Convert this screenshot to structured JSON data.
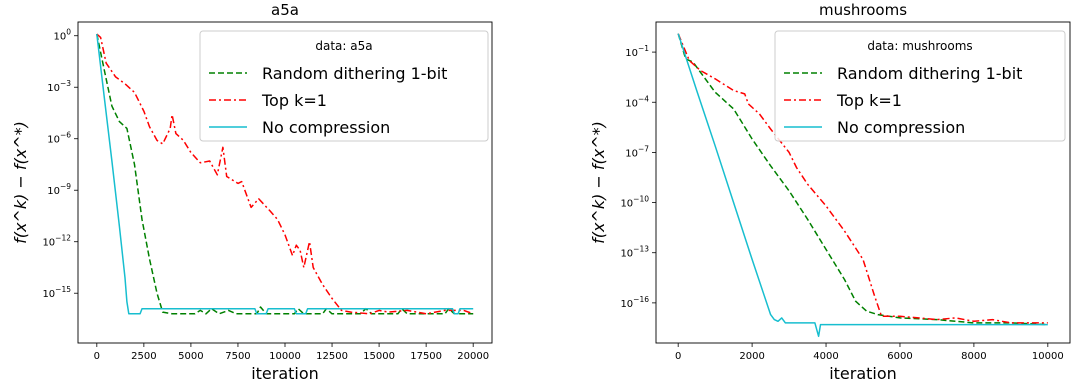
{
  "chart_data": [
    {
      "type": "line",
      "title": "a5a",
      "xlabel": "iteration",
      "ylabel": "f(x^k) − f(x^*)",
      "xlim": [
        -1000,
        21000
      ],
      "xticks": [
        0,
        2500,
        5000,
        7500,
        10000,
        12500,
        15000,
        17500,
        20000
      ],
      "xtick_labels": [
        "0",
        "2500",
        "5000",
        "7500",
        "10000",
        "12500",
        "15000",
        "17500",
        "20000"
      ],
      "yscale": "log",
      "ylim_exp": [
        -17.9,
        0.8
      ],
      "yticks_exp": [
        0,
        -3,
        -6,
        -9,
        -12,
        -15
      ],
      "ytick_labels": [
        {
          "base": "10",
          "exp": "0"
        },
        {
          "base": "10",
          "exp": "−3"
        },
        {
          "base": "10",
          "exp": "−6"
        },
        {
          "base": "10",
          "exp": "−9"
        },
        {
          "base": "10",
          "exp": "−12"
        },
        {
          "base": "10",
          "exp": "−15"
        }
      ],
      "legend": {
        "title": "data: a5a",
        "placement": "top-right"
      },
      "series": [
        {
          "name": "Random dithering 1-bit",
          "color": "#008000",
          "style": "dashed",
          "points": [
            [
              0,
              0.1
            ],
            [
              400,
              -2.0
            ],
            [
              800,
              -4.1
            ],
            [
              1200,
              -5.0
            ],
            [
              1600,
              -5.4
            ],
            [
              2000,
              -7.5
            ],
            [
              2400,
              -10.7
            ],
            [
              2800,
              -13.0
            ],
            [
              3200,
              -15.0
            ],
            [
              3500,
              -16.1
            ],
            [
              4000,
              -16.2
            ],
            [
              4600,
              -16.2
            ],
            [
              5200,
              -16.2
            ],
            [
              5500,
              -16.0
            ],
            [
              5800,
              -16.2
            ],
            [
              6100,
              -15.9
            ],
            [
              6500,
              -16.2
            ],
            [
              7000,
              -16.0
            ],
            [
              7400,
              -16.2
            ],
            [
              8500,
              -16.2
            ],
            [
              8700,
              -15.8
            ],
            [
              9000,
              -16.2
            ],
            [
              10500,
              -16.2
            ],
            [
              10700,
              -15.9
            ],
            [
              11000,
              -16.2
            ],
            [
              12000,
              -16.2
            ],
            [
              12200,
              -15.9
            ],
            [
              12500,
              -16.2
            ],
            [
              14000,
              -16.2
            ],
            [
              14300,
              -15.9
            ],
            [
              14600,
              -16.2
            ],
            [
              16000,
              -16.2
            ],
            [
              16200,
              -15.9
            ],
            [
              16500,
              -16.2
            ],
            [
              18500,
              -16.2
            ],
            [
              18700,
              -15.9
            ],
            [
              19000,
              -16.2
            ],
            [
              20000,
              -16.2
            ]
          ]
        },
        {
          "name": "Top k=1",
          "color": "#ff0000",
          "style": "dashdot",
          "points": [
            [
              0,
              0.1
            ],
            [
              200,
              -0.1
            ],
            [
              500,
              -1.6
            ],
            [
              1000,
              -2.4
            ],
            [
              1500,
              -2.8
            ],
            [
              2000,
              -3.3
            ],
            [
              2500,
              -4.4
            ],
            [
              2800,
              -5.3
            ],
            [
              3200,
              -6.1
            ],
            [
              3500,
              -6.3
            ],
            [
              3900,
              -5.4
            ],
            [
              4000,
              -4.6
            ],
            [
              4200,
              -5.7
            ],
            [
              4600,
              -6.1
            ],
            [
              5000,
              -6.8
            ],
            [
              5500,
              -7.4
            ],
            [
              6000,
              -7.3
            ],
            [
              6400,
              -8.1
            ],
            [
              6700,
              -6.5
            ],
            [
              6900,
              -8.2
            ],
            [
              7500,
              -8.6
            ],
            [
              7700,
              -8.5
            ],
            [
              8200,
              -10.0
            ],
            [
              8600,
              -9.5
            ],
            [
              9200,
              -10.2
            ],
            [
              9600,
              -10.7
            ],
            [
              10000,
              -11.6
            ],
            [
              10400,
              -12.8
            ],
            [
              10600,
              -12.2
            ],
            [
              10800,
              -12.5
            ],
            [
              11000,
              -13.5
            ],
            [
              11300,
              -12.0
            ],
            [
              11500,
              -13.5
            ],
            [
              12000,
              -14.5
            ],
            [
              12500,
              -15.3
            ],
            [
              13000,
              -16.0
            ],
            [
              13500,
              -16.1
            ],
            [
              14500,
              -16.2
            ],
            [
              15000,
              -16.0
            ],
            [
              15500,
              -16.1
            ],
            [
              16500,
              -16.0
            ],
            [
              17500,
              -16.2
            ],
            [
              18500,
              -16.0
            ],
            [
              19500,
              -16.0
            ],
            [
              20000,
              -16.2
            ]
          ]
        },
        {
          "name": "No compression",
          "color": "#17becf",
          "style": "solid",
          "points": [
            [
              0,
              0.1
            ],
            [
              400,
              -3.6
            ],
            [
              800,
              -7.3
            ],
            [
              1200,
              -11.1
            ],
            [
              1500,
              -14.1
            ],
            [
              1600,
              -15.5
            ],
            [
              1700,
              -16.2
            ],
            [
              2000,
              -16.2
            ],
            [
              2300,
              -16.2
            ],
            [
              2400,
              -15.9
            ],
            [
              8400,
              -15.9
            ],
            [
              8500,
              -16.2
            ],
            [
              9000,
              -16.2
            ],
            [
              9100,
              -15.9
            ],
            [
              10500,
              -15.9
            ],
            [
              10600,
              -16.2
            ],
            [
              11100,
              -16.2
            ],
            [
              11200,
              -15.9
            ],
            [
              18900,
              -15.9
            ],
            [
              19000,
              -16.2
            ],
            [
              19200,
              -16.2
            ],
            [
              19300,
              -15.9
            ],
            [
              20000,
              -15.9
            ]
          ]
        }
      ]
    },
    {
      "type": "line",
      "title": "mushrooms",
      "xlabel": "iteration",
      "ylabel": "f(x^k) − f(x^*)",
      "xlim": [
        -600,
        10600
      ],
      "xticks": [
        0,
        2000,
        4000,
        6000,
        8000,
        10000
      ],
      "xtick_labels": [
        "0",
        "2000",
        "4000",
        "6000",
        "8000",
        "10000"
      ],
      "yscale": "log",
      "ylim_exp": [
        -18.4,
        0.8
      ],
      "yticks_exp": [
        -1,
        -4,
        -7,
        -10,
        -13,
        -16
      ],
      "ytick_labels": [
        {
          "base": "10",
          "exp": "−1"
        },
        {
          "base": "10",
          "exp": "−4"
        },
        {
          "base": "10",
          "exp": "−7"
        },
        {
          "base": "10",
          "exp": "−10"
        },
        {
          "base": "10",
          "exp": "−13"
        },
        {
          "base": "10",
          "exp": "−16"
        }
      ],
      "legend": {
        "title": "data: mushrooms",
        "placement": "top-right"
      },
      "series": [
        {
          "name": "Random dithering 1-bit",
          "color": "#008000",
          "style": "dashed",
          "points": [
            [
              0,
              0.1
            ],
            [
              200,
              -1.4
            ],
            [
              400,
              -1.6
            ],
            [
              700,
              -2.5
            ],
            [
              1000,
              -3.4
            ],
            [
              1500,
              -4.4
            ],
            [
              2000,
              -6.2
            ],
            [
              2500,
              -7.8
            ],
            [
              3000,
              -9.3
            ],
            [
              3500,
              -11.0
            ],
            [
              4000,
              -12.8
            ],
            [
              4500,
              -14.6
            ],
            [
              4800,
              -15.9
            ],
            [
              5100,
              -16.5
            ],
            [
              5400,
              -16.7
            ],
            [
              6000,
              -16.9
            ],
            [
              7000,
              -17.0
            ],
            [
              8000,
              -17.2
            ],
            [
              9000,
              -17.2
            ],
            [
              10000,
              -17.3
            ]
          ]
        },
        {
          "name": "Top k=1",
          "color": "#ff0000",
          "style": "dashdot",
          "points": [
            [
              0,
              0.1
            ],
            [
              300,
              -1.5
            ],
            [
              600,
              -2.1
            ],
            [
              1000,
              -2.6
            ],
            [
              1500,
              -3.3
            ],
            [
              1800,
              -3.5
            ],
            [
              1900,
              -4.1
            ],
            [
              2200,
              -4.7
            ],
            [
              2500,
              -5.6
            ],
            [
              3000,
              -7.0
            ],
            [
              3200,
              -7.9
            ],
            [
              3500,
              -8.9
            ],
            [
              4000,
              -10.2
            ],
            [
              4500,
              -11.7
            ],
            [
              5000,
              -13.4
            ],
            [
              5300,
              -15.5
            ],
            [
              5500,
              -16.8
            ],
            [
              6000,
              -16.8
            ],
            [
              6500,
              -16.9
            ],
            [
              7000,
              -17.0
            ],
            [
              7500,
              -16.9
            ],
            [
              8000,
              -17.1
            ],
            [
              8500,
              -17.0
            ],
            [
              9000,
              -17.2
            ],
            [
              9500,
              -17.2
            ],
            [
              10000,
              -17.2
            ]
          ]
        },
        {
          "name": "No compression",
          "color": "#17becf",
          "style": "solid",
          "points": [
            [
              0,
              0.1
            ],
            [
              500,
              -3.3
            ],
            [
              1000,
              -6.6
            ],
            [
              1500,
              -10.0
            ],
            [
              2000,
              -13.4
            ],
            [
              2500,
              -16.7
            ],
            [
              2600,
              -17.0
            ],
            [
              2700,
              -17.1
            ],
            [
              2800,
              -16.9
            ],
            [
              2900,
              -17.2
            ],
            [
              3700,
              -17.2
            ],
            [
              3800,
              -18.0
            ],
            [
              3850,
              -17.3
            ],
            [
              10000,
              -17.3
            ]
          ]
        }
      ]
    }
  ]
}
